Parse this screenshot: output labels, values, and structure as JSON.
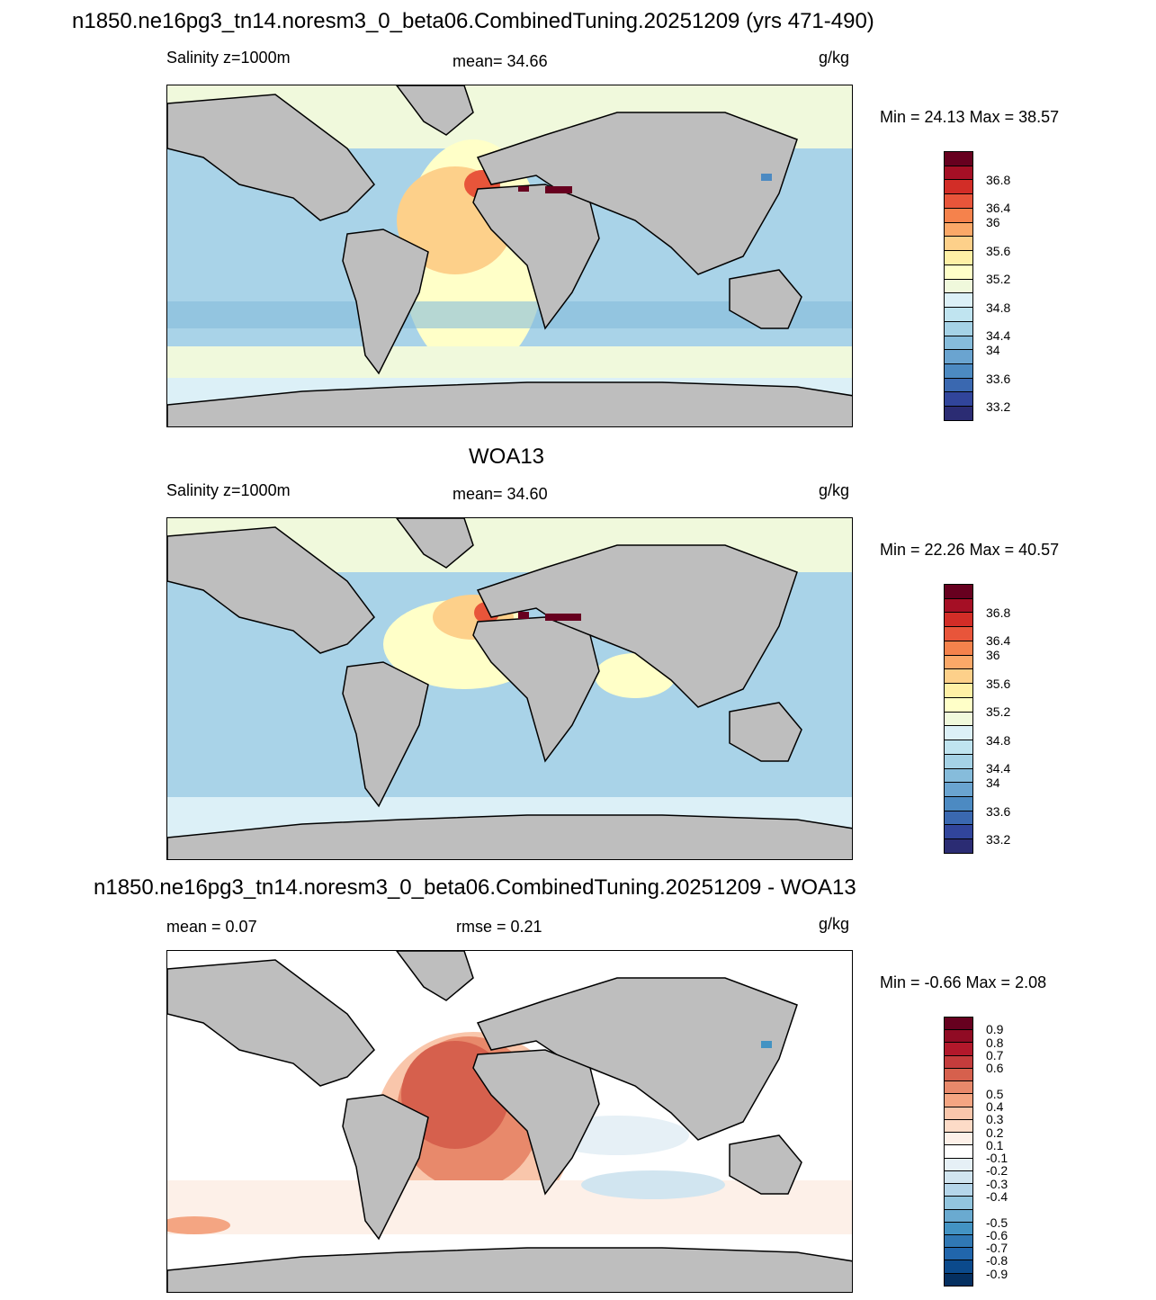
{
  "panels": [
    {
      "title": "n1850.ne16pg3_tn14.noresm3_0_beta06.CombinedTuning.20251209 (yrs 471-490)",
      "left_label": "Salinity z=1000m",
      "center_label": "mean=  34.66",
      "units": "g/kg",
      "minmax": "Min =  24.13 Max =  38.57",
      "colorbar_labels": [
        "36.8",
        "36.4",
        "36",
        "35.6",
        "35.2",
        "34.8",
        "34.4",
        "34",
        "33.6",
        "33.2"
      ],
      "colors": [
        "#67001f",
        "#a50f25",
        "#d22d27",
        "#e8553a",
        "#f5824c",
        "#fba868",
        "#fdd08a",
        "#fff0a6",
        "#ffffc8",
        "#f0f9dc",
        "#dcf0f7",
        "#c0e4f0",
        "#a5d2e6",
        "#86bcdb",
        "#6aa4d0",
        "#4c8ac2",
        "#3a68b0",
        "#31459b",
        "#2b2c73"
      ]
    },
    {
      "title": "WOA13",
      "left_label": "Salinity z=1000m",
      "center_label": "mean=  34.60",
      "units": "g/kg",
      "minmax": "Min =  22.26 Max =  40.57",
      "colorbar_labels": [
        "36.8",
        "36.4",
        "36",
        "35.6",
        "35.2",
        "34.8",
        "34.4",
        "34",
        "33.6",
        "33.2"
      ],
      "colors": [
        "#67001f",
        "#a50f25",
        "#d22d27",
        "#e8553a",
        "#f5824c",
        "#fba868",
        "#fdd08a",
        "#fff0a6",
        "#ffffc8",
        "#f0f9dc",
        "#dcf0f7",
        "#c0e4f0",
        "#a5d2e6",
        "#86bcdb",
        "#6aa4d0",
        "#4c8ac2",
        "#3a68b0",
        "#31459b",
        "#2b2c73"
      ]
    },
    {
      "title": "n1850.ne16pg3_tn14.noresm3_0_beta06.CombinedTuning.20251209 - WOA13",
      "left_label": "mean =   0.07",
      "center_label": "rmse =   0.21",
      "units": "g/kg",
      "minmax": "Min =  -0.66 Max =   2.08",
      "colorbar_labels": [
        "0.9",
        "0.8",
        "0.7",
        "0.6",
        "0.5",
        "0.4",
        "0.3",
        "0.2",
        "0.1",
        "-0.1",
        "-0.2",
        "-0.3",
        "-0.4",
        "-0.5",
        "-0.6",
        "-0.7",
        "-0.8",
        "-0.9"
      ],
      "colors": [
        "#67001f",
        "#900b24",
        "#b2182b",
        "#c43c3c",
        "#d6604d",
        "#e8896b",
        "#f4a582",
        "#f9c6ab",
        "#fddbc7",
        "#fdf0e8",
        "#ffffff",
        "#e6f0f6",
        "#d1e5f0",
        "#b5d6ea",
        "#92c5de",
        "#6aaad0",
        "#4393c3",
        "#3078b4",
        "#2166ac",
        "#0b4a8c",
        "#053061"
      ]
    }
  ]
}
